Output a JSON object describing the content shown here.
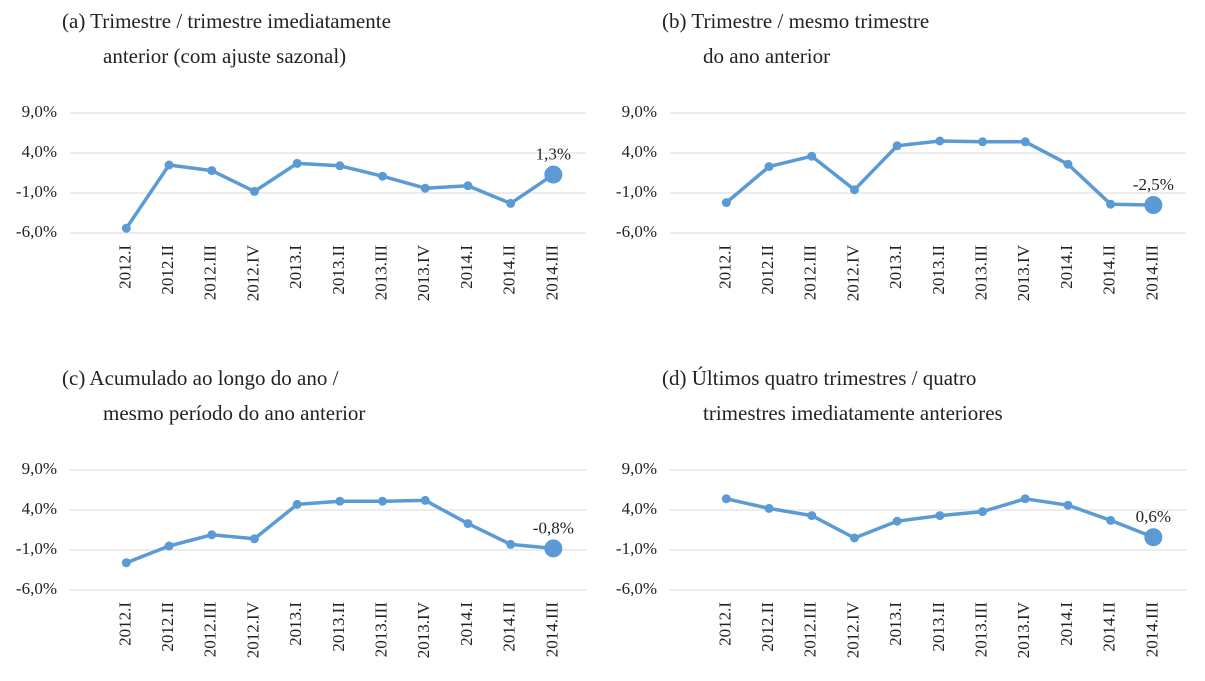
{
  "chart_data": [
    {
      "type": "line",
      "title": [
        "(a) Trimestre / trimestre imediatamente",
        "anterior (com ajuste sazonal)"
      ],
      "categories": [
        "2012.I",
        "2012.II",
        "2012.III",
        "2012.IV",
        "2013.I",
        "2013.II",
        "2013.III",
        "2013.IV",
        "2014.I",
        "2014.II",
        "2014.III"
      ],
      "values": [
        -5.4,
        2.5,
        1.8,
        -0.8,
        2.7,
        2.4,
        1.1,
        -0.4,
        -0.1,
        -2.3,
        1.3
      ],
      "value_labels": [
        null,
        null,
        null,
        null,
        null,
        null,
        null,
        null,
        null,
        null,
        "1,3%"
      ],
      "color": "#5b9bd5",
      "ylim": [
        -6,
        9
      ],
      "yticks": [
        {
          "value": 9,
          "label": "9,0%"
        },
        {
          "value": 4,
          "label": "4,0%"
        },
        {
          "value": -1,
          "label": "-1,0%"
        },
        {
          "value": -6,
          "label": "-6,0%"
        }
      ],
      "grid": true
    },
    {
      "type": "line",
      "title": [
        "(b) Trimestre / mesmo trimestre",
        "do ano anterior"
      ],
      "categories": [
        "2012.I",
        "2012.II",
        "2012.III",
        "2012.IV",
        "2013.I",
        "2013.II",
        "2013.III",
        "2013.IV",
        "2014.I",
        "2014.II",
        "2014.III"
      ],
      "values": [
        -2.2,
        2.3,
        3.6,
        -0.6,
        4.9,
        5.5,
        5.4,
        5.4,
        2.6,
        -2.4,
        -2.5
      ],
      "value_labels": [
        null,
        null,
        null,
        null,
        null,
        null,
        null,
        null,
        null,
        null,
        "-2,5%"
      ],
      "color": "#5b9bd5",
      "ylim": [
        -6,
        9
      ],
      "yticks": [
        {
          "value": 9,
          "label": "9,0%"
        },
        {
          "value": 4,
          "label": "4,0%"
        },
        {
          "value": -1,
          "label": "-1,0%"
        },
        {
          "value": -6,
          "label": "-6,0%"
        }
      ],
      "grid": true
    },
    {
      "type": "line",
      "title": [
        "(c) Acumulado ao longo do ano /",
        "mesmo período do ano anterior"
      ],
      "categories": [
        "2012.I",
        "2012.II",
        "2012.III",
        "2012.IV",
        "2013.I",
        "2013.II",
        "2013.III",
        "2013.IV",
        "2014.I",
        "2014.II",
        "2014.III"
      ],
      "values": [
        -2.6,
        -0.5,
        0.9,
        0.4,
        4.7,
        5.1,
        5.1,
        5.2,
        2.3,
        -0.3,
        -0.8
      ],
      "value_labels": [
        null,
        null,
        null,
        null,
        null,
        null,
        null,
        null,
        null,
        null,
        "-0,8%"
      ],
      "color": "#5b9bd5",
      "ylim": [
        -6,
        9
      ],
      "yticks": [
        {
          "value": 9,
          "label": "9,0%"
        },
        {
          "value": 4,
          "label": "4,0%"
        },
        {
          "value": -1,
          "label": "-1,0%"
        },
        {
          "value": -6,
          "label": "-6,0%"
        }
      ],
      "grid": true
    },
    {
      "type": "line",
      "title": [
        "(d) Últimos quatro trimestres / quatro",
        "trimestres imediatamente anteriores"
      ],
      "categories": [
        "2012.I",
        "2012.II",
        "2012.III",
        "2012.IV",
        "2013.I",
        "2013.II",
        "2013.III",
        "2013.IV",
        "2014.I",
        "2014.II",
        "2014.III"
      ],
      "values": [
        5.4,
        4.2,
        3.3,
        0.5,
        2.6,
        3.3,
        3.8,
        5.4,
        4.6,
        2.7,
        0.6
      ],
      "value_labels": [
        null,
        null,
        null,
        null,
        null,
        null,
        null,
        null,
        null,
        null,
        "0,6%"
      ],
      "color": "#5b9bd5",
      "ylim": [
        -6,
        9
      ],
      "yticks": [
        {
          "value": 9,
          "label": "9,0%"
        },
        {
          "value": 4,
          "label": "4,0%"
        },
        {
          "value": -1,
          "label": "-1,0%"
        },
        {
          "value": -6,
          "label": "-6,0%"
        }
      ],
      "grid": true
    }
  ]
}
